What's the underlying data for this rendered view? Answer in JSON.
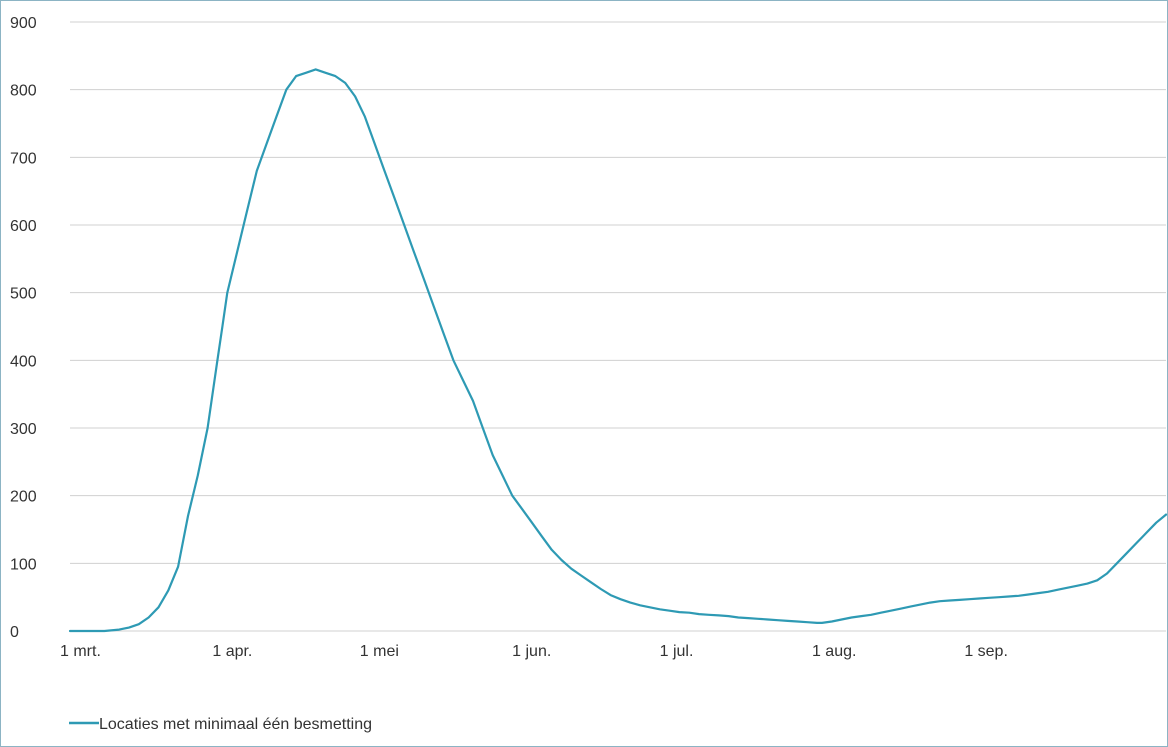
{
  "chart_data": {
    "type": "line",
    "title": "",
    "xlabel": "",
    "ylabel": "",
    "ylim": [
      0,
      900
    ],
    "yticks": [
      0,
      100,
      200,
      300,
      400,
      500,
      600,
      700,
      800,
      900
    ],
    "xticks": [
      {
        "day": 0,
        "label": "1 mrt."
      },
      {
        "day": 31,
        "label": "1 apr."
      },
      {
        "day": 61,
        "label": "1 mei"
      },
      {
        "day": 92,
        "label": "1 jun."
      },
      {
        "day": 122,
        "label": "1 jul."
      },
      {
        "day": 153,
        "label": "1 aug."
      },
      {
        "day": 184,
        "label": "1 sep."
      }
    ],
    "grid": true,
    "legend": "bottom-left",
    "colors": {
      "line": "#2e9ab4",
      "grid": "#d0d0d0",
      "frame": "#8cb4c4"
    },
    "series": [
      {
        "name": "Locaties met minimaal één besmetting",
        "points": [
          [
            0,
            0
          ],
          [
            4,
            0
          ],
          [
            7,
            0
          ],
          [
            10,
            2
          ],
          [
            12,
            5
          ],
          [
            14,
            10
          ],
          [
            16,
            20
          ],
          [
            18,
            35
          ],
          [
            20,
            60
          ],
          [
            22,
            95
          ],
          [
            24,
            170
          ],
          [
            26,
            230
          ],
          [
            28,
            300
          ],
          [
            30,
            400
          ],
          [
            31,
            450
          ],
          [
            32,
            500
          ],
          [
            34,
            560
          ],
          [
            36,
            620
          ],
          [
            38,
            680
          ],
          [
            40,
            720
          ],
          [
            42,
            760
          ],
          [
            44,
            800
          ],
          [
            46,
            820
          ],
          [
            48,
            825
          ],
          [
            50,
            830
          ],
          [
            52,
            825
          ],
          [
            54,
            820
          ],
          [
            56,
            810
          ],
          [
            58,
            790
          ],
          [
            60,
            760
          ],
          [
            62,
            720
          ],
          [
            64,
            680
          ],
          [
            66,
            640
          ],
          [
            68,
            600
          ],
          [
            70,
            560
          ],
          [
            72,
            520
          ],
          [
            74,
            480
          ],
          [
            76,
            440
          ],
          [
            78,
            400
          ],
          [
            80,
            370
          ],
          [
            82,
            340
          ],
          [
            84,
            300
          ],
          [
            86,
            260
          ],
          [
            88,
            230
          ],
          [
            90,
            200
          ],
          [
            92,
            180
          ],
          [
            94,
            160
          ],
          [
            96,
            140
          ],
          [
            98,
            120
          ],
          [
            100,
            105
          ],
          [
            102,
            92
          ],
          [
            104,
            82
          ],
          [
            106,
            72
          ],
          [
            108,
            62
          ],
          [
            110,
            53
          ],
          [
            112,
            47
          ],
          [
            114,
            42
          ],
          [
            116,
            38
          ],
          [
            118,
            35
          ],
          [
            120,
            32
          ],
          [
            122,
            30
          ],
          [
            124,
            28
          ],
          [
            126,
            27
          ],
          [
            128,
            25
          ],
          [
            130,
            24
          ],
          [
            132,
            23
          ],
          [
            134,
            22
          ],
          [
            136,
            20
          ],
          [
            138,
            19
          ],
          [
            140,
            18
          ],
          [
            142,
            17
          ],
          [
            144,
            16
          ],
          [
            146,
            15
          ],
          [
            148,
            14
          ],
          [
            150,
            13
          ],
          [
            152,
            12
          ],
          [
            153,
            12
          ],
          [
            155,
            14
          ],
          [
            157,
            17
          ],
          [
            159,
            20
          ],
          [
            161,
            22
          ],
          [
            163,
            24
          ],
          [
            165,
            27
          ],
          [
            167,
            30
          ],
          [
            169,
            33
          ],
          [
            171,
            36
          ],
          [
            173,
            39
          ],
          [
            175,
            42
          ],
          [
            177,
            44
          ],
          [
            179,
            45
          ],
          [
            181,
            46
          ],
          [
            183,
            47
          ],
          [
            185,
            48
          ],
          [
            187,
            49
          ],
          [
            189,
            50
          ],
          [
            191,
            51
          ],
          [
            193,
            52
          ],
          [
            195,
            54
          ],
          [
            197,
            56
          ],
          [
            199,
            58
          ],
          [
            201,
            61
          ],
          [
            203,
            64
          ],
          [
            205,
            67
          ],
          [
            207,
            70
          ],
          [
            209,
            75
          ],
          [
            211,
            85
          ],
          [
            213,
            100
          ],
          [
            215,
            115
          ],
          [
            217,
            130
          ],
          [
            219,
            145
          ],
          [
            221,
            160
          ],
          [
            223,
            172
          ]
        ]
      }
    ]
  }
}
